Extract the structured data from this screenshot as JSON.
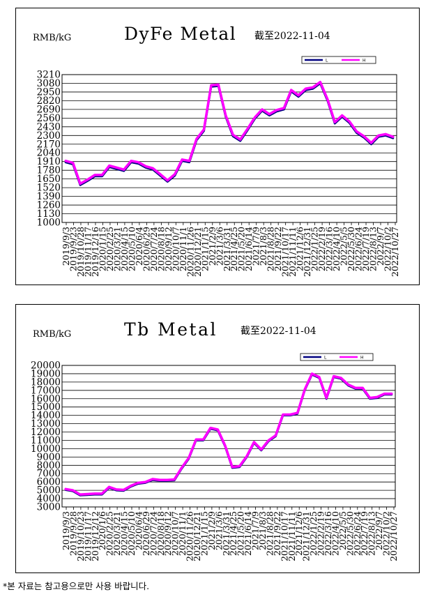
{
  "footnote": "*본 자료는 참고용으로만 사용 바랍니다.",
  "chart_data": [
    {
      "type": "line",
      "title": "DyFe Metal",
      "date_note": "截至2022-11-04",
      "unit_label": "RMB/kG",
      "legend": [
        "L",
        "H"
      ],
      "grid": "horizontal",
      "ylim": [
        1000,
        3210
      ],
      "yticks": [
        1000,
        1130,
        1260,
        1390,
        1520,
        1650,
        1780,
        1910,
        2040,
        2170,
        2300,
        2430,
        2560,
        2690,
        2820,
        2950,
        3080,
        3210
      ],
      "xticks": [
        "2019/9/3",
        "2019/9/23",
        "2019/10/28",
        "2019/11/17",
        "2019/12/16",
        "2020/1/15",
        "2020/2/25",
        "2020/3/21",
        "2020/4/15",
        "2020/5/10",
        "2020/6/4",
        "2020/6/29",
        "2020/7/24",
        "2020/8/18",
        "2020/9/12",
        "2020/10/7",
        "2020/11/1",
        "2020/11/26",
        "2020/12/21",
        "2021/1/15",
        "2021/2/9",
        "2021/3/6",
        "2021/3/31",
        "2021/4/25",
        "2021/5/20",
        "2021/6/14",
        "2021/7/9",
        "2021/8/3",
        "2021/8/28",
        "2021/9/22",
        "2021/10/17",
        "2021/11/11",
        "2021/12/6",
        "2021/12/31",
        "2022/1/25",
        "2022/2/19",
        "2022/3/16",
        "2022/4/10",
        "2022/5/5",
        "2022/5/30",
        "2022/6/24",
        "2022/7/19",
        "2022/8/13",
        "2022/9/7",
        "2022/10/2",
        "2022/10/27"
      ],
      "x": [
        "2019/9/3",
        "2019/9/23",
        "2019/10/28",
        "2019/11/17",
        "2019/12/16",
        "2020/1/15",
        "2020/2/25",
        "2020/3/21",
        "2020/4/15",
        "2020/5/10",
        "2020/6/4",
        "2020/6/29",
        "2020/7/24",
        "2020/8/18",
        "2020/9/12",
        "2020/10/7",
        "2020/11/1",
        "2020/11/26",
        "2020/12/21",
        "2021/1/15",
        "2021/2/9",
        "2021/3/6",
        "2021/3/31",
        "2021/4/25",
        "2021/5/20",
        "2021/6/14",
        "2021/7/9",
        "2021/8/3",
        "2021/8/28",
        "2021/9/22",
        "2021/10/17",
        "2021/11/11",
        "2021/12/6",
        "2021/12/31",
        "2022/1/25",
        "2022/2/19",
        "2022/3/16",
        "2022/4/10",
        "2022/5/5",
        "2022/5/30",
        "2022/6/24",
        "2022/7/19",
        "2022/8/13",
        "2022/9/7",
        "2022/10/2",
        "2022/10/27"
      ],
      "series": [
        {
          "name": "L",
          "color": "#000080",
          "values": [
            1900,
            1870,
            1560,
            1620,
            1690,
            1690,
            1830,
            1800,
            1770,
            1900,
            1880,
            1820,
            1790,
            1700,
            1610,
            1700,
            1920,
            1900,
            2230,
            2370,
            3030,
            3040,
            2580,
            2290,
            2220,
            2380,
            2550,
            2670,
            2600,
            2660,
            2690,
            2960,
            2880,
            2980,
            3000,
            3080,
            2820,
            2480,
            2580,
            2490,
            2340,
            2270,
            2170,
            2280,
            2300,
            2260
          ]
        },
        {
          "name": "H",
          "color": "#ff00ff",
          "values": [
            1920,
            1890,
            1580,
            1640,
            1710,
            1710,
            1850,
            1820,
            1790,
            1920,
            1900,
            1840,
            1810,
            1720,
            1630,
            1720,
            1940,
            1920,
            2250,
            2390,
            3050,
            3060,
            2600,
            2310,
            2240,
            2400,
            2570,
            2690,
            2620,
            2680,
            2710,
            2980,
            2900,
            3000,
            3020,
            3100,
            2840,
            2500,
            2600,
            2510,
            2360,
            2290,
            2190,
            2300,
            2320,
            2280
          ]
        }
      ]
    },
    {
      "type": "line",
      "title": "Tb Metal",
      "date_note": "截至2022-11-04",
      "unit_label": "RMB/kG",
      "legend": [
        "L",
        "H"
      ],
      "grid": "horizontal",
      "ylim": [
        3000,
        20000
      ],
      "yticks": [
        3000,
        4000,
        5000,
        6000,
        7000,
        8000,
        9000,
        10000,
        11000,
        12000,
        13000,
        14000,
        15000,
        16000,
        17000,
        18000,
        19000,
        20000
      ],
      "xticks": [
        "2019/9/3",
        "2019/9/28",
        "2019/10/23",
        "2019/11/17",
        "2019/12/12",
        "2020/1/6",
        "2020/2/25",
        "2020/3/21",
        "2020/4/15",
        "2020/5/10",
        "2020/6/4",
        "2020/6/29",
        "2020/7/24",
        "2020/8/18",
        "2020/9/12",
        "2020/10/7",
        "2020/11/1",
        "2020/11/26",
        "2020/12/21",
        "2021/1/15",
        "2021/2/9",
        "2021/3/6",
        "2021/3/31",
        "2021/4/25",
        "2021/5/20",
        "2021/6/14",
        "2021/7/9",
        "2021/8/3",
        "2021/8/28",
        "2021/9/22",
        "2021/10/17",
        "2021/11/11",
        "2021/12/6",
        "2021/12/31",
        "2022/1/25",
        "2022/2/19",
        "2022/3/16",
        "2022/4/10",
        "2022/5/5",
        "2022/5/30",
        "2022/6/24",
        "2022/7/19",
        "2022/8/13",
        "2022/9/7",
        "2022/10/2",
        "2022/10/27"
      ],
      "x": [
        "2019/9/3",
        "2019/9/28",
        "2019/10/23",
        "2019/11/17",
        "2019/12/12",
        "2020/1/6",
        "2020/2/25",
        "2020/3/21",
        "2020/4/15",
        "2020/5/10",
        "2020/6/4",
        "2020/6/29",
        "2020/7/24",
        "2020/8/18",
        "2020/9/12",
        "2020/10/7",
        "2020/11/1",
        "2020/11/26",
        "2020/12/21",
        "2021/1/15",
        "2021/2/9",
        "2021/3/6",
        "2021/3/31",
        "2021/4/25",
        "2021/5/20",
        "2021/6/14",
        "2021/7/9",
        "2021/8/3",
        "2021/8/28",
        "2021/9/22",
        "2021/10/17",
        "2021/11/11",
        "2021/12/6",
        "2021/12/31",
        "2022/1/25",
        "2022/2/19",
        "2022/3/16",
        "2022/4/10",
        "2022/5/5",
        "2022/5/30",
        "2022/6/24",
        "2022/7/19",
        "2022/8/13",
        "2022/9/7",
        "2022/10/2",
        "2022/10/27"
      ],
      "series": [
        {
          "name": "L",
          "color": "#000080",
          "values": [
            5050,
            4900,
            4400,
            4450,
            4500,
            4500,
            5300,
            5000,
            4950,
            5450,
            5800,
            5900,
            6250,
            6150,
            6150,
            6200,
            7600,
            8800,
            11000,
            11000,
            12400,
            12200,
            10300,
            7700,
            7800,
            9000,
            10700,
            9800,
            10900,
            11500,
            14000,
            14000,
            14200,
            17000,
            18900,
            18500,
            16000,
            18600,
            18400,
            17600,
            17200,
            17200,
            16000,
            16100,
            16500,
            16500
          ]
        },
        {
          "name": "H",
          "color": "#ff00ff",
          "values": [
            5150,
            5000,
            4500,
            4550,
            4600,
            4600,
            5400,
            5100,
            5050,
            5550,
            5900,
            6000,
            6350,
            6250,
            6250,
            6300,
            7700,
            8900,
            11100,
            11100,
            12500,
            12300,
            10400,
            7800,
            7900,
            9100,
            10800,
            9900,
            11000,
            11600,
            14100,
            14100,
            14300,
            17100,
            19000,
            18600,
            16100,
            18700,
            18500,
            17700,
            17300,
            17300,
            16100,
            16200,
            16600,
            16600
          ]
        }
      ]
    }
  ]
}
